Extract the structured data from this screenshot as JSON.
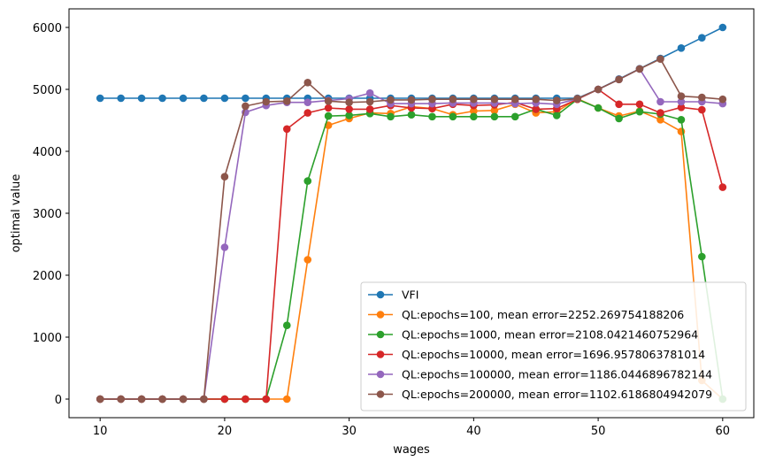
{
  "chart_data": {
    "type": "line",
    "xlabel": "wages",
    "ylabel": "optimal value",
    "xlim": [
      7.5,
      62.5
    ],
    "ylim": [
      -300,
      6300
    ],
    "xticks": [
      10,
      20,
      30,
      40,
      50,
      60
    ],
    "yticks": [
      0,
      1000,
      2000,
      3000,
      4000,
      5000,
      6000
    ],
    "legend_position": "lower-right",
    "grid": false,
    "x": [
      10,
      11.67,
      13.33,
      15,
      16.67,
      18.33,
      20,
      21.67,
      23.33,
      25,
      26.67,
      28.33,
      30,
      31.67,
      33.33,
      35,
      36.67,
      38.33,
      40,
      41.67,
      43.33,
      45,
      46.67,
      48.33,
      50,
      51.67,
      53.33,
      55,
      56.67,
      58.33,
      60
    ],
    "series": [
      {
        "name": "VFI",
        "color": "#1f77b4",
        "values": [
          4857,
          4857,
          4857,
          4857,
          4857,
          4857,
          4857,
          4857,
          4857,
          4857,
          4857,
          4857,
          4857,
          4857,
          4857,
          4857,
          4857,
          4857,
          4857,
          4857,
          4857,
          4857,
          4857,
          4857,
          5000,
          5167,
          5333,
          5500,
          5667,
          5833,
          6000
        ]
      },
      {
        "name": "QL:epochs=100, mean error=2252.269754188206",
        "color": "#ff7f0e",
        "values": [
          0,
          0,
          0,
          0,
          0,
          0,
          0,
          0,
          0,
          0,
          2250,
          4420,
          4530,
          4620,
          4610,
          4720,
          4690,
          4590,
          4650,
          4660,
          4760,
          4620,
          4640,
          4850,
          4700,
          4570,
          4650,
          4510,
          4320,
          300,
          0
        ]
      },
      {
        "name": "QL:epochs=1000, mean error=2108.0421460752964",
        "color": "#2ca02c",
        "values": [
          0,
          0,
          0,
          0,
          0,
          0,
          0,
          0,
          0,
          1190,
          3520,
          4570,
          4580,
          4610,
          4560,
          4590,
          4560,
          4560,
          4560,
          4560,
          4560,
          4680,
          4580,
          4840,
          4700,
          4530,
          4640,
          4600,
          4510,
          2300,
          0
        ]
      },
      {
        "name": "QL:epochs=10000, mean error=1696.9578063781014",
        "color": "#d62728",
        "values": [
          0,
          0,
          0,
          0,
          0,
          0,
          0,
          0,
          0,
          4360,
          4620,
          4700,
          4680,
          4680,
          4740,
          4700,
          4690,
          4760,
          4740,
          4750,
          4790,
          4680,
          4690,
          4840,
          5000,
          4760,
          4760,
          4620,
          4710,
          4670,
          3420
        ]
      },
      {
        "name": "QL:epochs=100000, mean error=1186.0446896782144",
        "color": "#9467bd",
        "values": [
          0,
          0,
          0,
          0,
          0,
          0,
          2450,
          4630,
          4740,
          4790,
          4790,
          4820,
          4850,
          4940,
          4770,
          4770,
          4770,
          4780,
          4780,
          4780,
          4770,
          4780,
          4760,
          4850,
          5000,
          5160,
          5330,
          4800,
          4800,
          4800,
          4770
        ]
      },
      {
        "name": "QL:epochs=200000, mean error=1102.6186804942079",
        "color": "#8c564b",
        "values": [
          0,
          0,
          0,
          0,
          0,
          0,
          3590,
          4730,
          4800,
          4810,
          5110,
          4810,
          4790,
          4800,
          4830,
          4830,
          4840,
          4840,
          4840,
          4840,
          4840,
          4840,
          4820,
          4850,
          5000,
          5160,
          5330,
          5490,
          4890,
          4870,
          4840
        ]
      }
    ]
  }
}
